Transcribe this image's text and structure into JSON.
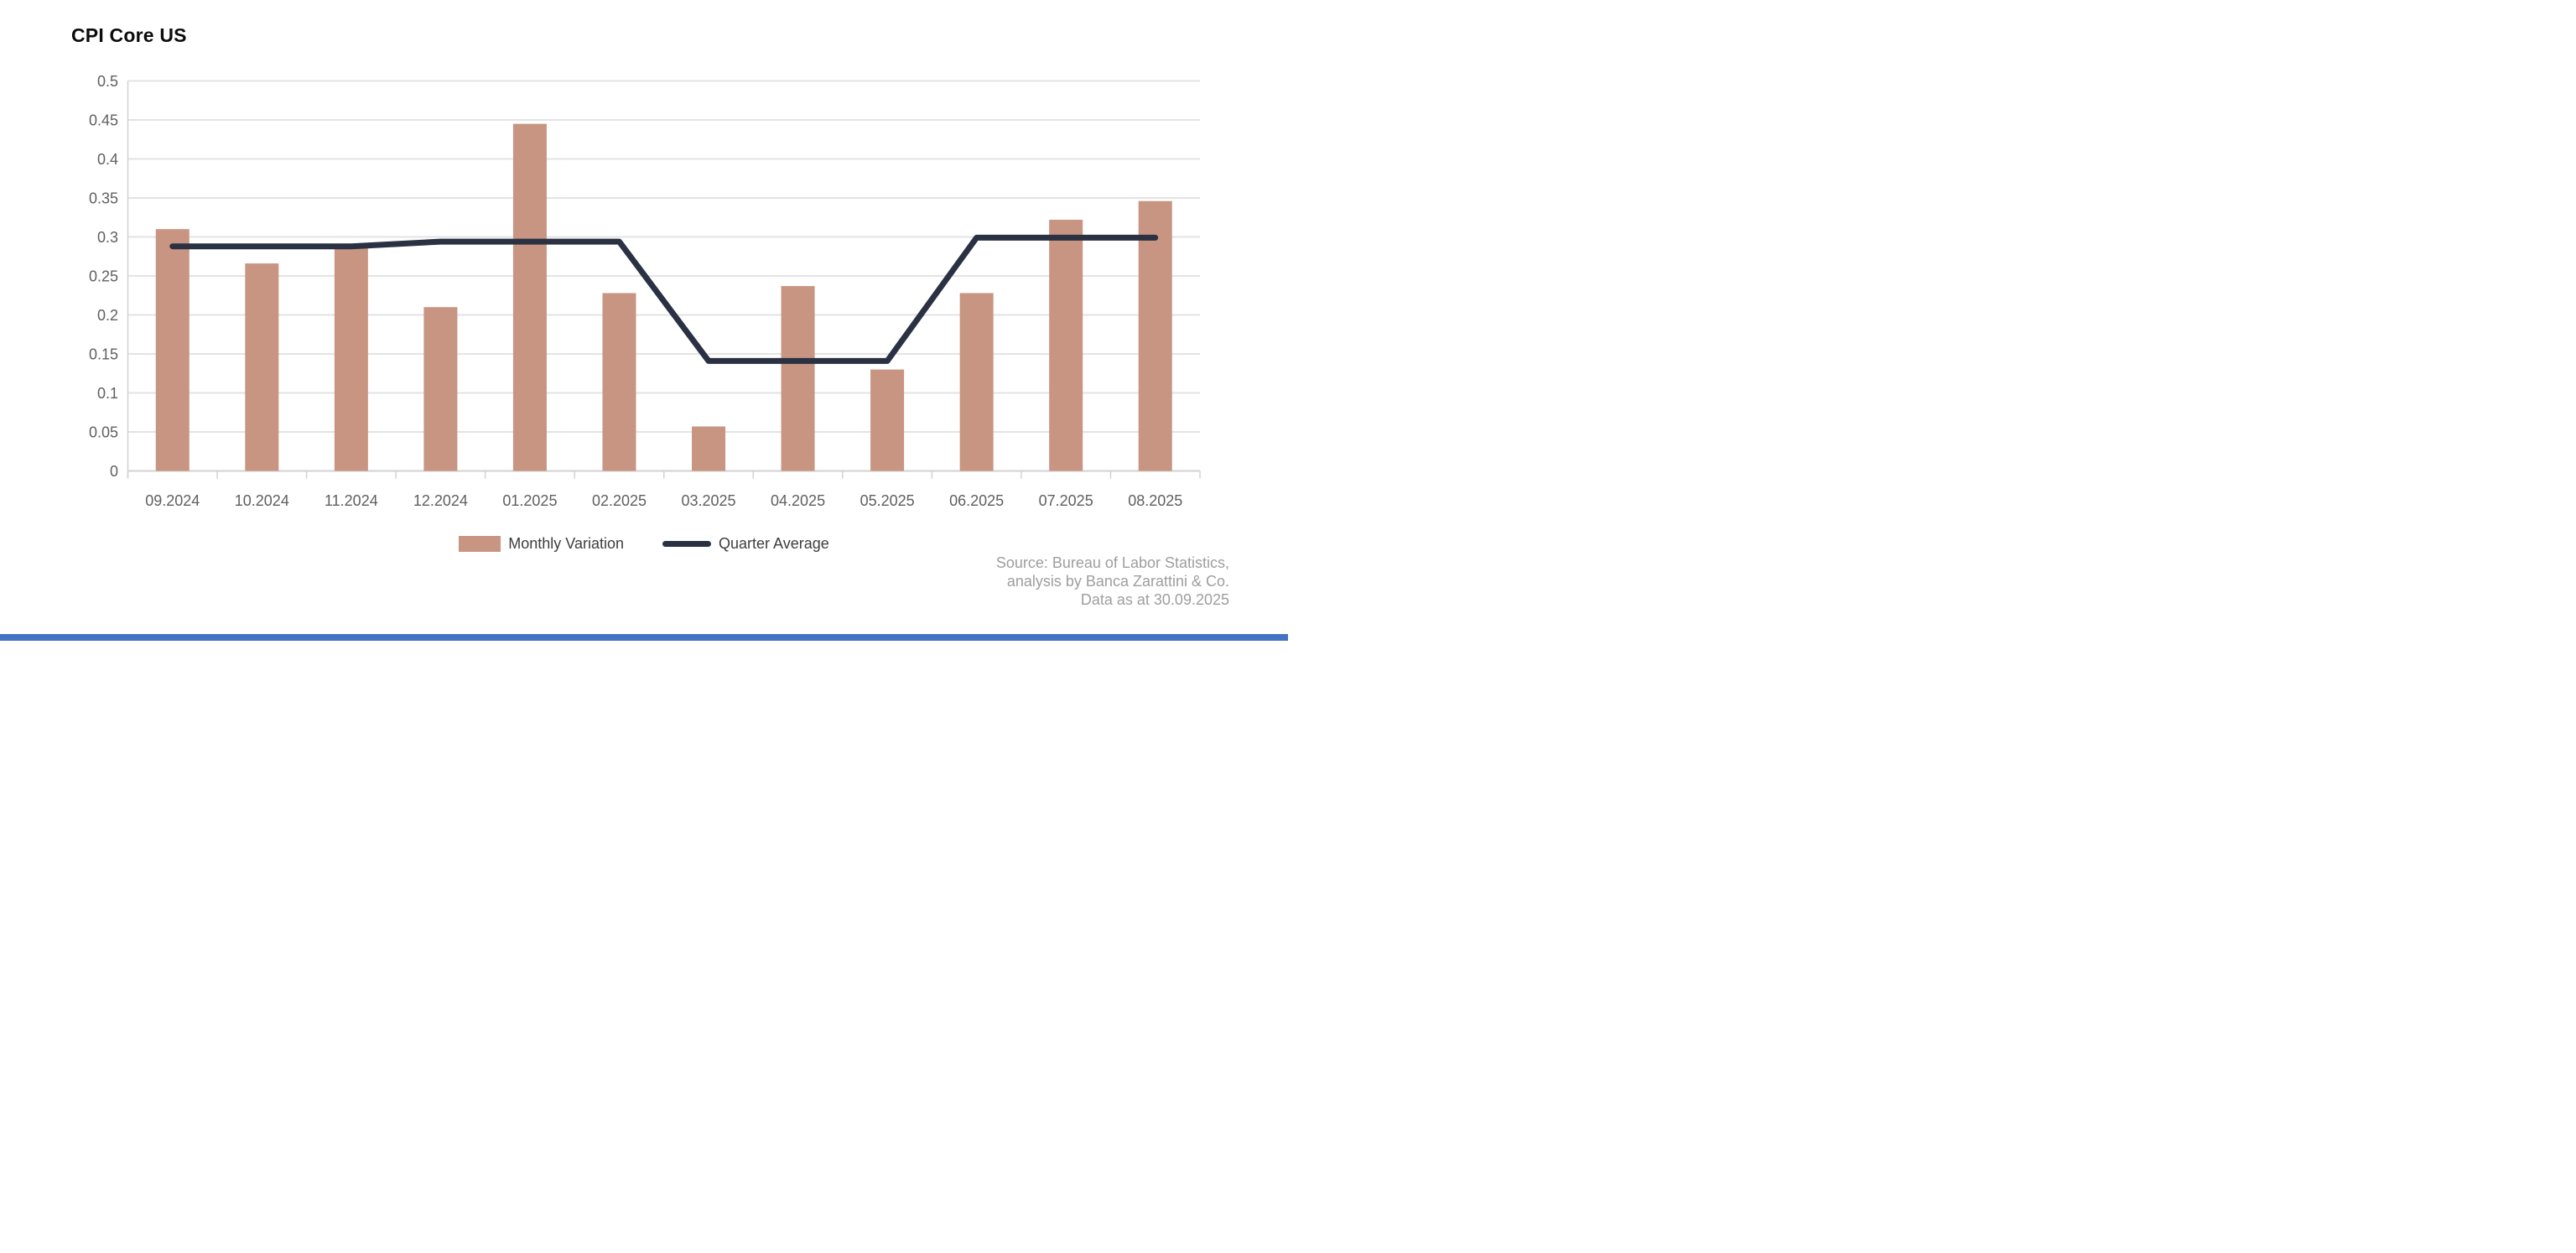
{
  "page": {
    "title": "CPI Core US"
  },
  "legend": {
    "monthly_label": "Monthly Variation",
    "quarter_label": "Quarter Average"
  },
  "source": {
    "line1": "Source: Bureau of Labor Statistics,",
    "line2": "analysis by Banca Zarattini & Co.",
    "line3": "Data as at 30.09.2025"
  },
  "colors": {
    "bar": "#c79581",
    "line": "#2a3142",
    "grid": "#e3e3e3",
    "axis": "#d2d2d2",
    "tick_text": "#5f5f5f",
    "legend_text": "#3d3d3d",
    "source_text": "#9e9e9e",
    "title_text": "#0c0c0c",
    "footer": "#4472c4"
  },
  "chart_data": {
    "type": "combo",
    "title": "CPI Core US",
    "categories": [
      "09.2024",
      "10.2024",
      "11.2024",
      "12.2024",
      "01.2025",
      "02.2025",
      "03.2025",
      "04.2025",
      "05.2025",
      "06.2025",
      "07.2025",
      "08.2025"
    ],
    "series": [
      {
        "name": "Monthly Variation",
        "type": "bar",
        "values": [
          0.31,
          0.266,
          0.288,
          0.21,
          0.445,
          0.228,
          0.057,
          0.237,
          0.13,
          0.228,
          0.322,
          0.346
        ]
      },
      {
        "name": "Quarter Average",
        "type": "step-line",
        "values": [
          0.288,
          0.288,
          0.288,
          0.294,
          0.294,
          0.294,
          0.141,
          0.141,
          0.141,
          0.299,
          0.299,
          0.299
        ]
      }
    ],
    "xlabel": "",
    "ylabel": "",
    "ylim": [
      0,
      0.5
    ],
    "ytick_step": 0.05,
    "ytick_labels": [
      "0",
      "0.05",
      "0.1",
      "0.15",
      "0.2",
      "0.25",
      "0.3",
      "0.35",
      "0.4",
      "0.45",
      "0.5"
    ],
    "grid": true,
    "legend_position": "bottom-center"
  }
}
